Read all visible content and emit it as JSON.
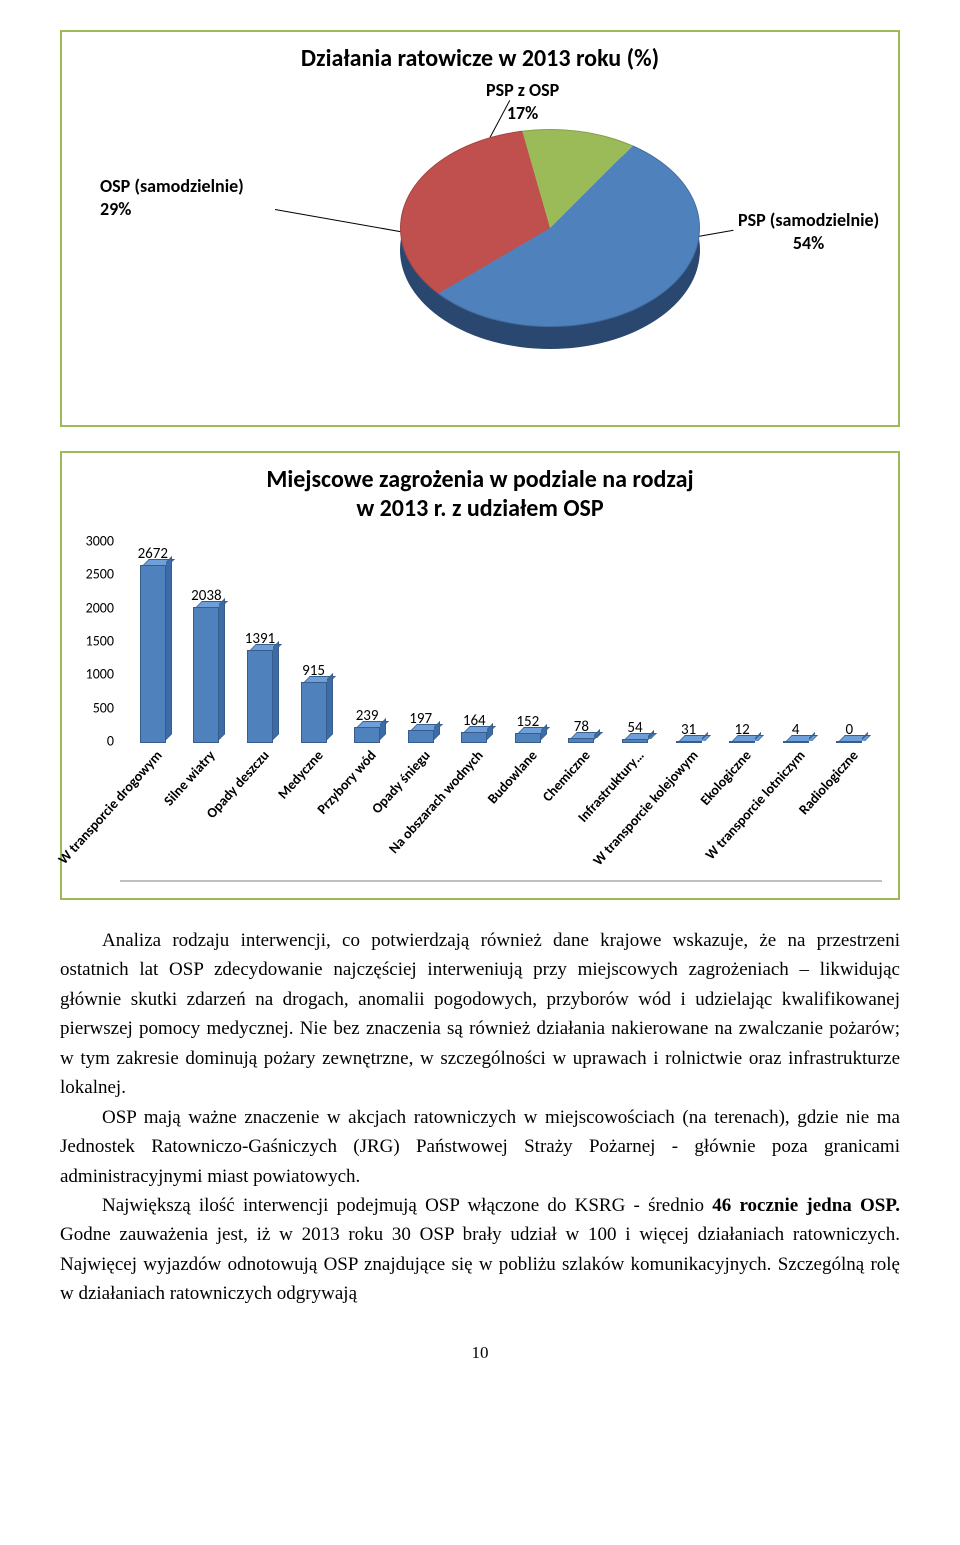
{
  "pie": {
    "title": "Działania ratowicze w 2013 roku (%)",
    "slices": [
      {
        "label": "PSP (samodzielnie)",
        "value": 54,
        "color": "#4f81bd"
      },
      {
        "label": "OSP (samodzielnie)",
        "value": 29,
        "color": "#c0504d"
      },
      {
        "label": "PSP z OSP",
        "value": 17,
        "color": "#9bbb59"
      }
    ],
    "label_fontsize": 18,
    "labels": {
      "psp_z_osp_l1": "PSP z OSP",
      "psp_z_osp_l2": "17%",
      "osp_sam_l1": "OSP (samodzielnie)",
      "osp_sam_l2": "29%",
      "psp_sam_l1": "PSP (samodzielnie)",
      "psp_sam_l2": "54%"
    },
    "bg": "#ffffff",
    "border": "#9bbb59"
  },
  "bar": {
    "title_l1": "Miejscowe zagrożenia w podziale na rodzaj",
    "title_l2": "w 2013 r. z udziałem OSP",
    "type": "bar",
    "categories": [
      "W transporcie drogowym",
      "Silne wiatry",
      "Opady deszczu",
      "Medyczne",
      "Przybory wód",
      "Opady śniegu",
      "Na obszarach wodnych",
      "Budowlane",
      "Chemiczne",
      "Infrastruktury…",
      "W transporcie kolejowym",
      "Ekologiczne",
      "W transporcie lotniczym",
      "Radiologiczne"
    ],
    "values": [
      2672,
      2038,
      1391,
      915,
      239,
      197,
      164,
      152,
      78,
      54,
      31,
      12,
      4,
      0
    ],
    "bar_color": "#4f81bd",
    "bar_color_top": "#6f9fd8",
    "bar_color_side": "#3b6ca8",
    "ylim": [
      0,
      3000
    ],
    "ytick_step": 500,
    "yticks": [
      0,
      500,
      1000,
      1500,
      2000,
      2500,
      3000
    ],
    "bg": "#ffffff",
    "border": "#9bbb59",
    "label_fontsize": 14,
    "value_fontsize": 15
  },
  "body": {
    "p1": "Analiza rodzaju interwencji, co potwierdzają również dane krajowe wskazuje, że na przestrzeni ostatnich lat OSP zdecydowanie najczęściej interweniują przy miejscowych zagrożeniach – likwidując głównie skutki zdarzeń na drogach, anomalii pogodowych, przyborów wód i udzielając kwalifikowanej pierwszej pomocy medycznej. Nie bez znaczenia są również działania nakierowane na zwalczanie pożarów; w tym zakresie dominują pożary zewnętrzne, w szczególności w uprawach i rolnictwie oraz infrastrukturze lokalnej.",
    "p2": "OSP mają ważne   znaczenie w akcjach ratowniczych w miejscowościach (na terenach), gdzie nie ma Jednostek Ratowniczo-Gaśniczych (JRG) Państwowej Straży Pożarnej - głównie poza granicami administracyjnymi miast powiatowych.",
    "p3": "Największą ilość interwencji podejmują OSP włączone do KSRG - średnio 46 rocznie jedna OSP. Godne zauważenia jest, iż w 2013 roku 30 OSP brały udział w 100 i więcej działaniach ratowniczych. Najwięcej wyjazdów odnotowują OSP znajdujące się w pobliżu szlaków komunikacyjnych. Szczególną rolę w działaniach ratowniczych odgrywają"
  },
  "page_number": "10"
}
